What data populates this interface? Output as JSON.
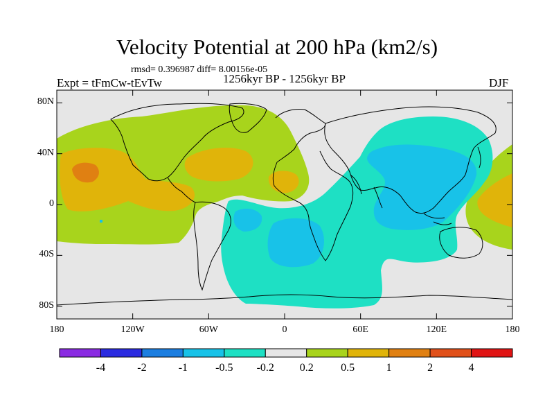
{
  "title": "Velocity Potential at 200 hPa (km2/s)",
  "stats_line": "rmsd= 0.396987 diff= 8.00156e-05",
  "left_label": "Expt = tFmCw-tEvTw",
  "center_label": "1256kyr BP - 1256kyr BP",
  "right_label": "DJF",
  "map": {
    "lon_range": [
      -180,
      180
    ],
    "lat_range": [
      -90,
      90
    ],
    "lat_ticks": [
      {
        "value": 80,
        "label": "80N"
      },
      {
        "value": 40,
        "label": "40N"
      },
      {
        "value": 0,
        "label": "0"
      },
      {
        "value": -40,
        "label": "40S"
      },
      {
        "value": -80,
        "label": "80S"
      }
    ],
    "lon_ticks": [
      {
        "value": -180,
        "label": "180"
      },
      {
        "value": -120,
        "label": "120W"
      },
      {
        "value": -60,
        "label": "60W"
      },
      {
        "value": 0,
        "label": "0"
      },
      {
        "value": 60,
        "label": "60E"
      },
      {
        "value": 120,
        "label": "120E"
      },
      {
        "value": 180,
        "label": "180"
      }
    ],
    "background_color": "#e6e6e6"
  },
  "colorbar": {
    "labels": [
      "-4",
      "-2",
      "-1",
      "-0.5",
      "-0.2",
      "0.2",
      "0.5",
      "1",
      "2",
      "4"
    ],
    "colors": [
      "#8a2be2",
      "#2b2be0",
      "#1c7ee0",
      "#18c2e8",
      "#1ee0c4",
      "#e6e6e6",
      "#a8d41c",
      "#e0b40a",
      "#e08012",
      "#e0501a",
      "#e01414"
    ]
  },
  "fields": {
    "positive_weak_color": "#a8d41c",
    "positive_mid_color": "#e0b40a",
    "positive_strong_color": "#e08012",
    "negative_weak_color": "#1ee0c4",
    "negative_mid_color": "#18c2e8"
  }
}
